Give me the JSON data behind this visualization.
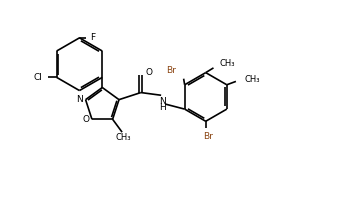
{
  "background_color": "#ffffff",
  "line_color": "#000000",
  "label_color_Cl": "#000000",
  "label_color_F": "#000000",
  "label_color_O": "#000000",
  "label_color_N": "#000000",
  "label_color_Br": "#8B4513",
  "figsize": [
    3.38,
    2.23
  ],
  "dpi": 100,
  "xlim": [
    0,
    10
  ],
  "ylim": [
    0,
    6.6
  ]
}
